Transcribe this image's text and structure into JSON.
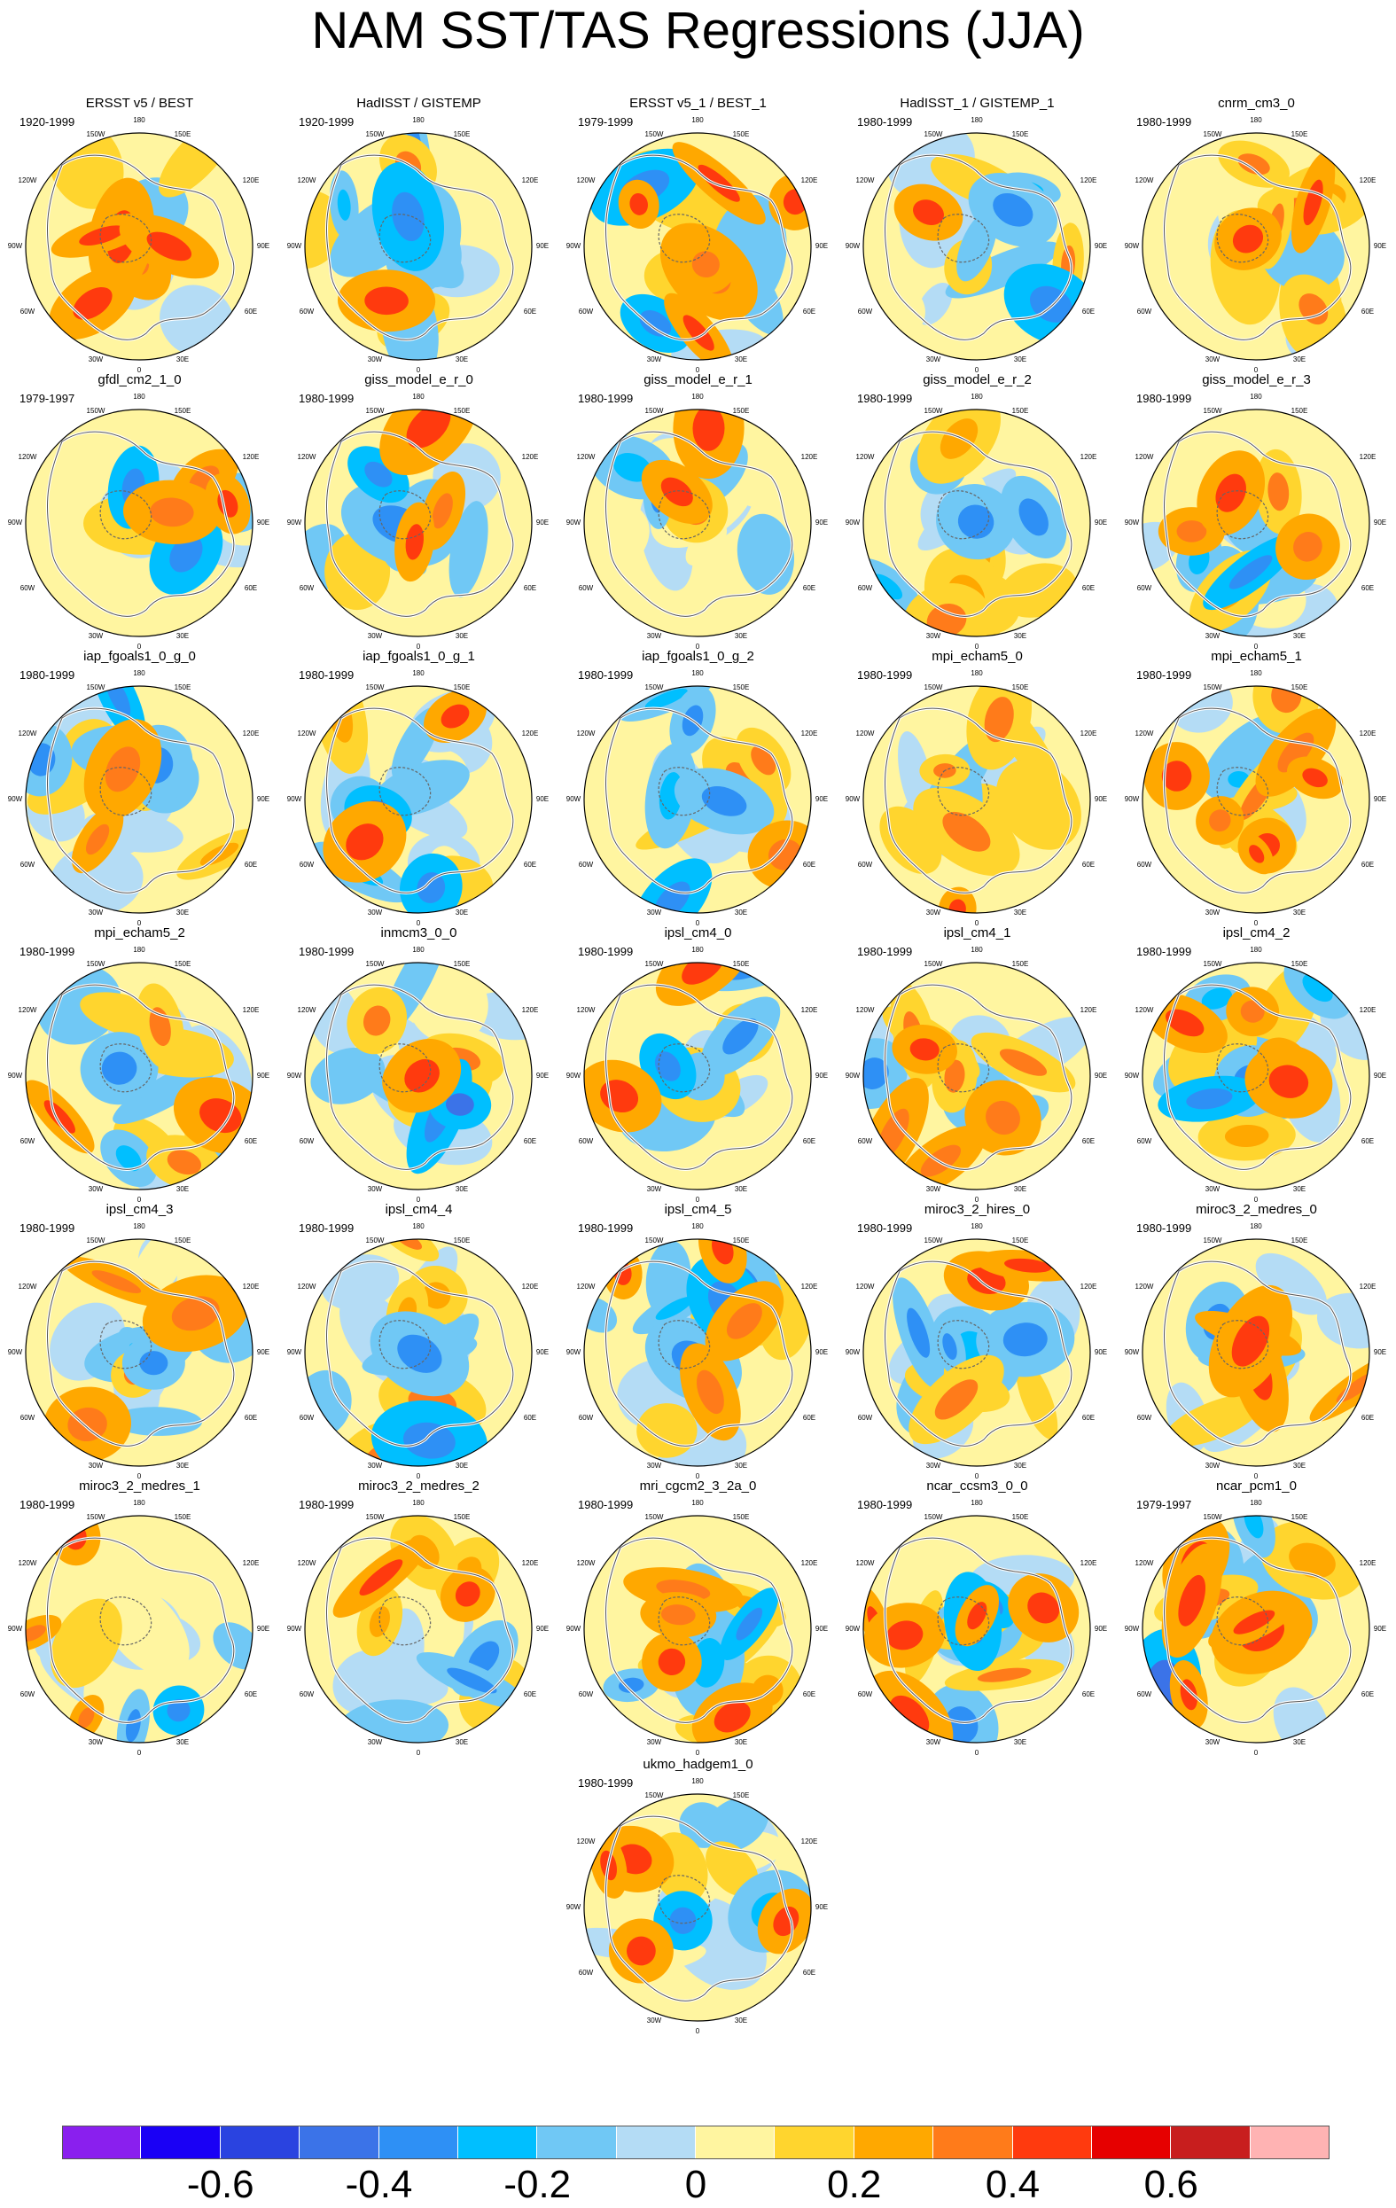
{
  "title": "NAM SST/TAS Regressions (JJA)",
  "longitude_labels": [
    "180",
    "150W",
    "150E",
    "120W",
    "120E",
    "90W",
    "90E",
    "60W",
    "60E",
    "30W",
    "30E",
    "0"
  ],
  "chart_data": {
    "type": "heatmap",
    "projection": "north polar stereographic",
    "panels": [
      {
        "title": "ERSST v5 / BEST",
        "period": "1920-1999"
      },
      {
        "title": "HadISST / GISTEMP",
        "period": "1920-1999"
      },
      {
        "title": "ERSST v5_1 / BEST_1",
        "period": "1979-1999"
      },
      {
        "title": "HadISST_1 / GISTEMP_1",
        "period": "1980-1999"
      },
      {
        "title": "cnrm_cm3_0",
        "period": "1980-1999"
      },
      {
        "title": "gfdl_cm2_1_0",
        "period": "1979-1997"
      },
      {
        "title": "giss_model_e_r_0",
        "period": "1980-1999"
      },
      {
        "title": "giss_model_e_r_1",
        "period": "1980-1999"
      },
      {
        "title": "giss_model_e_r_2",
        "period": "1980-1999"
      },
      {
        "title": "giss_model_e_r_3",
        "period": "1980-1999"
      },
      {
        "title": "iap_fgoals1_0_g_0",
        "period": "1980-1999"
      },
      {
        "title": "iap_fgoals1_0_g_1",
        "period": "1980-1999"
      },
      {
        "title": "iap_fgoals1_0_g_2",
        "period": "1980-1999"
      },
      {
        "title": "mpi_echam5_0",
        "period": "1980-1999"
      },
      {
        "title": "mpi_echam5_1",
        "period": "1980-1999"
      },
      {
        "title": "mpi_echam5_2",
        "period": "1980-1999"
      },
      {
        "title": "inmcm3_0_0",
        "period": "1980-1999"
      },
      {
        "title": "ipsl_cm4_0",
        "period": "1980-1999"
      },
      {
        "title": "ipsl_cm4_1",
        "period": "1980-1999"
      },
      {
        "title": "ipsl_cm4_2",
        "period": "1980-1999"
      },
      {
        "title": "ipsl_cm4_3",
        "period": "1980-1999"
      },
      {
        "title": "ipsl_cm4_4",
        "period": "1980-1999"
      },
      {
        "title": "ipsl_cm4_5",
        "period": "1980-1999"
      },
      {
        "title": "miroc3_2_hires_0",
        "period": "1980-1999"
      },
      {
        "title": "miroc3_2_medres_0",
        "period": "1980-1999"
      },
      {
        "title": "miroc3_2_medres_1",
        "period": "1980-1999"
      },
      {
        "title": "miroc3_2_medres_2",
        "period": "1980-1999"
      },
      {
        "title": "mri_cgcm2_3_2a_0",
        "period": "1980-1999"
      },
      {
        "title": "ncar_ccsm3_0_0",
        "period": "1980-1999"
      },
      {
        "title": "ncar_pcm1_0",
        "period": "1979-1997"
      },
      {
        "title": "ukmo_hadgem1_0",
        "period": "1980-1999"
      }
    ],
    "colorbar": {
      "ticks": [
        "-0.6",
        "-0.4",
        "-0.2",
        "0",
        "0.2",
        "0.4",
        "0.6"
      ],
      "tick_values": [
        -0.6,
        -0.4,
        -0.2,
        0,
        0.2,
        0.4,
        0.6
      ],
      "levels": [
        -0.7,
        -0.6,
        -0.5,
        -0.4,
        -0.3,
        -0.2,
        -0.1,
        0,
        0.1,
        0.2,
        0.3,
        0.4,
        0.5,
        0.6,
        0.7
      ],
      "colors": [
        "#8a1fee",
        "#1a00f5",
        "#2a43e0",
        "#3b73e8",
        "#2e90f5",
        "#00bfff",
        "#70c8f5",
        "#b4dcf5",
        "#fff5a0",
        "#ffd52e",
        "#ffa800",
        "#ff7b1a",
        "#ff3a0e",
        "#e60000",
        "#c81e1e",
        "#ffb3b3"
      ]
    }
  }
}
